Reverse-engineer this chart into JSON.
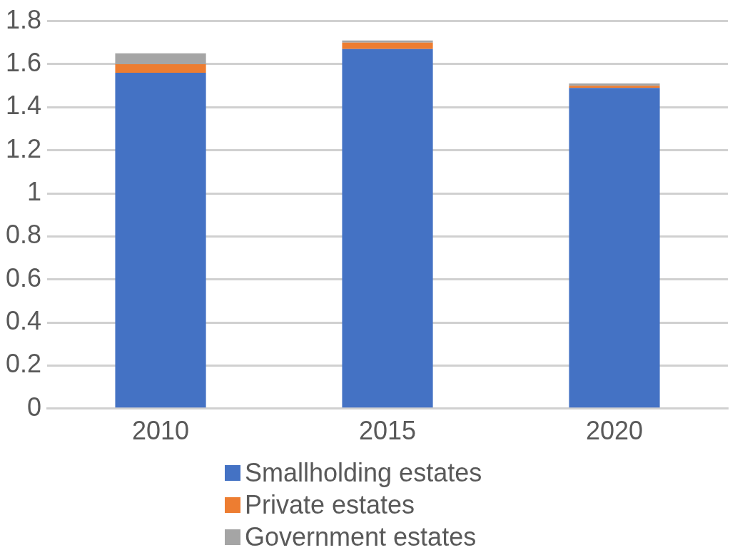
{
  "chart_data": {
    "type": "bar",
    "stacked": true,
    "categories": [
      "2010",
      "2015",
      "2020"
    ],
    "series": [
      {
        "name": "Smallholding estates",
        "color": "#4472c4",
        "values": [
          1.56,
          1.67,
          1.49
        ]
      },
      {
        "name": "Private estates",
        "color": "#ed7d31",
        "values": [
          0.04,
          0.03,
          0.01
        ]
      },
      {
        "name": "Government estates",
        "color": "#a5a5a5",
        "values": [
          0.05,
          0.01,
          0.01
        ]
      }
    ],
    "ylim": [
      0,
      1.8
    ],
    "yticks": [
      0,
      0.2,
      0.4,
      0.6,
      0.8,
      1,
      1.2,
      1.4,
      1.6,
      1.8
    ],
    "grid": "y",
    "legend": "bottom"
  }
}
